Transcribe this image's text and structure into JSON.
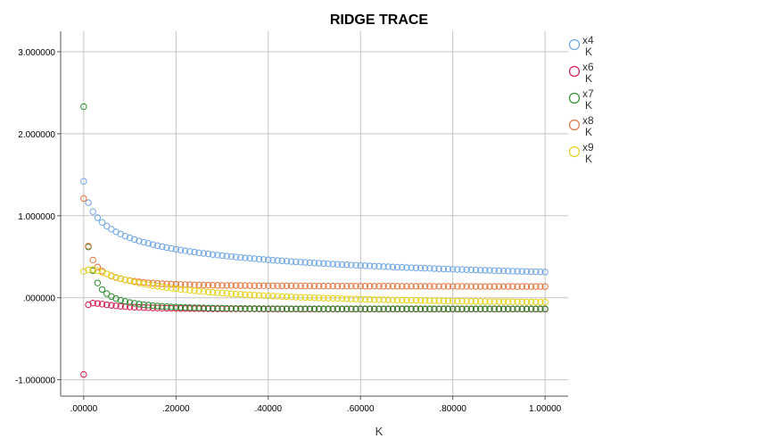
{
  "chart_data": {
    "type": "scatter",
    "title": "RIDGE TRACE",
    "xlabel": "K",
    "ylabel": "",
    "xlim": [
      -0.05,
      1.05
    ],
    "ylim": [
      -1.2,
      3.25
    ],
    "x_ticks": [
      0,
      0.2,
      0.4,
      0.6,
      0.8,
      1.0
    ],
    "x_tick_labels": [
      ".00000",
      ".20000",
      ".40000",
      ".60000",
      ".80000",
      "1.00000"
    ],
    "y_ticks": [
      -1,
      0,
      1,
      2,
      3
    ],
    "y_tick_labels": [
      "-1.000000",
      ".000000",
      "1.000000",
      "2.000000",
      "3.000000"
    ],
    "grid": true,
    "legend_position": "right",
    "k_values": [
      0.0,
      0.01,
      0.02,
      0.03,
      0.04,
      0.05,
      0.06,
      0.07,
      0.08,
      0.09,
      0.1,
      0.11,
      0.12,
      0.13,
      0.14,
      0.15,
      0.16,
      0.17,
      0.18,
      0.19,
      0.2,
      0.21,
      0.22,
      0.23,
      0.24,
      0.25,
      0.26,
      0.27,
      0.28,
      0.29,
      0.3,
      0.31,
      0.32,
      0.33,
      0.34,
      0.35,
      0.36,
      0.37,
      0.38,
      0.39,
      0.4,
      0.41,
      0.42,
      0.43,
      0.44,
      0.45,
      0.46,
      0.47,
      0.48,
      0.49,
      0.5,
      0.51,
      0.52,
      0.53,
      0.54,
      0.55,
      0.56,
      0.57,
      0.58,
      0.59,
      0.6,
      0.61,
      0.62,
      0.63,
      0.64,
      0.65,
      0.66,
      0.67,
      0.68,
      0.69,
      0.7,
      0.71,
      0.72,
      0.73,
      0.74,
      0.75,
      0.76,
      0.77,
      0.78,
      0.79,
      0.8,
      0.81,
      0.82,
      0.83,
      0.84,
      0.85,
      0.86,
      0.87,
      0.88,
      0.89,
      0.9,
      0.91,
      0.92,
      0.93,
      0.94,
      0.95,
      0.96,
      0.97,
      0.98,
      0.99,
      1.0
    ],
    "series": [
      {
        "name": "x4",
        "sub": "K",
        "color": "#6ea6e6",
        "values": [
          1.42,
          1.16,
          1.05,
          0.976,
          0.919,
          0.874,
          0.836,
          0.804,
          0.777,
          0.752,
          0.731,
          0.711,
          0.693,
          0.677,
          0.662,
          0.648,
          0.635,
          0.623,
          0.612,
          0.601,
          0.591,
          0.582,
          0.573,
          0.564,
          0.556,
          0.548,
          0.541,
          0.534,
          0.527,
          0.52,
          0.514,
          0.508,
          0.502,
          0.497,
          0.491,
          0.486,
          0.481,
          0.476,
          0.471,
          0.467,
          0.462,
          0.458,
          0.454,
          0.45,
          0.446,
          0.442,
          0.438,
          0.434,
          0.431,
          0.427,
          0.424,
          0.42,
          0.417,
          0.414,
          0.411,
          0.408,
          0.405,
          0.402,
          0.399,
          0.396,
          0.393,
          0.391,
          0.388,
          0.385,
          0.383,
          0.38,
          0.378,
          0.375,
          0.373,
          0.371,
          0.368,
          0.366,
          0.364,
          0.362,
          0.36,
          0.358,
          0.355,
          0.353,
          0.351,
          0.349,
          0.347,
          0.345,
          0.344,
          0.342,
          0.34,
          0.338,
          0.336,
          0.334,
          0.333,
          0.331,
          0.329,
          0.328,
          0.326,
          0.324,
          0.323,
          0.321,
          0.32,
          0.318,
          0.317,
          0.315,
          0.314
        ]
      },
      {
        "name": "x6",
        "sub": "K",
        "color": "#d81b4f",
        "values": [
          -0.935,
          -0.085,
          -0.065,
          -0.07,
          -0.078,
          -0.086,
          -0.093,
          -0.099,
          -0.104,
          -0.108,
          -0.112,
          -0.115,
          -0.118,
          -0.12,
          -0.122,
          -0.124,
          -0.125,
          -0.127,
          -0.128,
          -0.129,
          -0.13,
          -0.131,
          -0.132,
          -0.132,
          -0.133,
          -0.133,
          -0.134,
          -0.134,
          -0.135,
          -0.135,
          -0.135,
          -0.136,
          -0.136,
          -0.136,
          -0.137,
          -0.137,
          -0.137,
          -0.137,
          -0.137,
          -0.138,
          -0.138,
          -0.138,
          -0.138,
          -0.138,
          -0.138,
          -0.138,
          -0.138,
          -0.139,
          -0.139,
          -0.139,
          -0.139,
          -0.139,
          -0.139,
          -0.139,
          -0.139,
          -0.139,
          -0.139,
          -0.139,
          -0.139,
          -0.139,
          -0.139,
          -0.139,
          -0.139,
          -0.139,
          -0.139,
          -0.139,
          -0.139,
          -0.139,
          -0.139,
          -0.139,
          -0.139,
          -0.139,
          -0.139,
          -0.139,
          -0.139,
          -0.139,
          -0.139,
          -0.139,
          -0.139,
          -0.139,
          -0.139,
          -0.139,
          -0.139,
          -0.139,
          -0.139,
          -0.139,
          -0.139,
          -0.139,
          -0.139,
          -0.139,
          -0.139,
          -0.139,
          -0.139,
          -0.139,
          -0.139,
          -0.139,
          -0.139,
          -0.139,
          -0.139,
          -0.139,
          -0.139
        ]
      },
      {
        "name": "x7",
        "sub": "K",
        "color": "#2e8b2e",
        "values": [
          2.33,
          0.62,
          0.33,
          0.18,
          0.1,
          0.05,
          0.015,
          -0.01,
          -0.03,
          -0.045,
          -0.058,
          -0.068,
          -0.077,
          -0.084,
          -0.09,
          -0.096,
          -0.101,
          -0.105,
          -0.108,
          -0.111,
          -0.114,
          -0.116,
          -0.118,
          -0.12,
          -0.122,
          -0.123,
          -0.124,
          -0.126,
          -0.127,
          -0.128,
          -0.128,
          -0.129,
          -0.13,
          -0.13,
          -0.131,
          -0.131,
          -0.132,
          -0.132,
          -0.132,
          -0.133,
          -0.133,
          -0.133,
          -0.133,
          -0.134,
          -0.134,
          -0.134,
          -0.134,
          -0.134,
          -0.134,
          -0.134,
          -0.135,
          -0.135,
          -0.135,
          -0.135,
          -0.135,
          -0.135,
          -0.135,
          -0.135,
          -0.135,
          -0.135,
          -0.135,
          -0.135,
          -0.135,
          -0.135,
          -0.135,
          -0.135,
          -0.135,
          -0.135,
          -0.135,
          -0.135,
          -0.135,
          -0.135,
          -0.135,
          -0.135,
          -0.135,
          -0.135,
          -0.135,
          -0.135,
          -0.135,
          -0.135,
          -0.135,
          -0.135,
          -0.135,
          -0.135,
          -0.135,
          -0.135,
          -0.135,
          -0.135,
          -0.135,
          -0.135,
          -0.135,
          -0.135,
          -0.135,
          -0.135,
          -0.135,
          -0.135,
          -0.135,
          -0.135,
          -0.135,
          -0.135,
          -0.135
        ]
      },
      {
        "name": "x8",
        "sub": "K",
        "color": "#e8743b",
        "values": [
          1.21,
          0.63,
          0.46,
          0.375,
          0.325,
          0.29,
          0.265,
          0.246,
          0.231,
          0.219,
          0.209,
          0.201,
          0.194,
          0.188,
          0.183,
          0.179,
          0.175,
          0.172,
          0.169,
          0.166,
          0.164,
          0.162,
          0.16,
          0.159,
          0.157,
          0.156,
          0.155,
          0.154,
          0.153,
          0.152,
          0.151,
          0.15,
          0.15,
          0.149,
          0.149,
          0.148,
          0.148,
          0.147,
          0.147,
          0.146,
          0.146,
          0.146,
          0.145,
          0.145,
          0.145,
          0.145,
          0.144,
          0.144,
          0.144,
          0.144,
          0.143,
          0.143,
          0.143,
          0.143,
          0.143,
          0.142,
          0.142,
          0.142,
          0.142,
          0.142,
          0.142,
          0.141,
          0.141,
          0.141,
          0.141,
          0.141,
          0.141,
          0.141,
          0.14,
          0.14,
          0.14,
          0.14,
          0.14,
          0.14,
          0.14,
          0.14,
          0.139,
          0.139,
          0.139,
          0.139,
          0.139,
          0.139,
          0.139,
          0.139,
          0.139,
          0.138,
          0.138,
          0.138,
          0.138,
          0.138,
          0.138,
          0.138,
          0.138,
          0.138,
          0.137,
          0.137,
          0.137,
          0.137,
          0.137,
          0.137,
          0.137
        ]
      },
      {
        "name": "x9",
        "sub": "K",
        "color": "#e6d21a",
        "values": [
          0.32,
          0.34,
          0.345,
          0.33,
          0.31,
          0.29,
          0.27,
          0.25,
          0.234,
          0.219,
          0.205,
          0.192,
          0.18,
          0.169,
          0.159,
          0.149,
          0.14,
          0.132,
          0.124,
          0.117,
          0.11,
          0.103,
          0.097,
          0.091,
          0.086,
          0.08,
          0.075,
          0.07,
          0.066,
          0.061,
          0.057,
          0.053,
          0.049,
          0.045,
          0.042,
          0.038,
          0.035,
          0.032,
          0.029,
          0.026,
          0.023,
          0.02,
          0.018,
          0.015,
          0.013,
          0.01,
          0.008,
          0.006,
          0.004,
          0.002,
          0.0,
          -0.002,
          -0.004,
          -0.006,
          -0.008,
          -0.009,
          -0.011,
          -0.013,
          -0.014,
          -0.016,
          -0.017,
          -0.019,
          -0.02,
          -0.022,
          -0.023,
          -0.024,
          -0.026,
          -0.027,
          -0.028,
          -0.029,
          -0.03,
          -0.031,
          -0.032,
          -0.033,
          -0.034,
          -0.035,
          -0.036,
          -0.037,
          -0.038,
          -0.039,
          -0.04,
          -0.041,
          -0.042,
          -0.042,
          -0.043,
          -0.044,
          -0.045,
          -0.045,
          -0.046,
          -0.047,
          -0.047,
          -0.048,
          -0.049,
          -0.049,
          -0.05,
          -0.05,
          -0.051,
          -0.052,
          -0.052,
          -0.053,
          -0.053
        ]
      }
    ]
  }
}
